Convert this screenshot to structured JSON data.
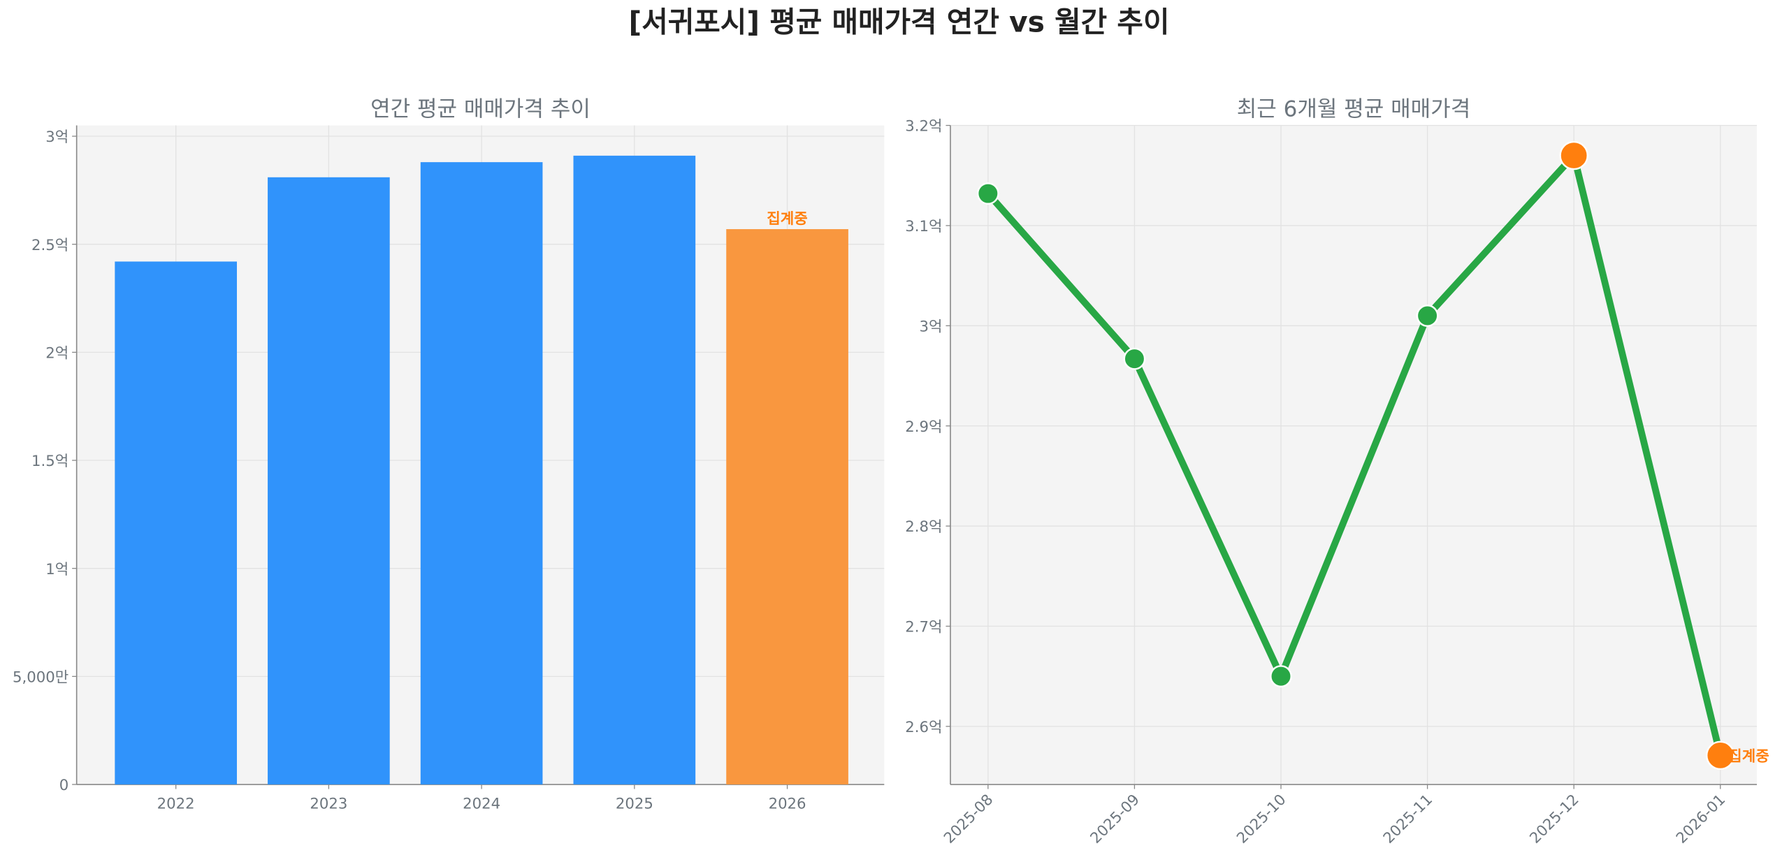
{
  "title": "[서귀포시] 평균 매매가격 연간 vs 월간 추이",
  "colors": {
    "bar": "#3093fb",
    "bar_partial": "#f9973f",
    "line": "#28a745",
    "highlight": "#ff7f0e",
    "plot_bg": "#f4f4f4"
  },
  "chart_data": [
    {
      "type": "bar",
      "title": "연간 평균 매매가격 추이",
      "unit": "억",
      "categories": [
        "2022",
        "2023",
        "2024",
        "2025",
        "2026"
      ],
      "values": [
        2.42,
        2.81,
        2.88,
        2.91,
        2.57
      ],
      "partial": [
        false,
        false,
        false,
        false,
        true
      ],
      "annotation": {
        "category": "2026",
        "text": "집계중"
      },
      "ylim": [
        0,
        3.05
      ],
      "yticks": [
        0,
        0.5,
        1,
        1.5,
        2,
        2.5,
        3
      ],
      "ytick_labels": [
        "0",
        "5,000만",
        "1억",
        "1.5억",
        "2억",
        "2.5억",
        "3억"
      ],
      "grid": true
    },
    {
      "type": "line",
      "title": "최근 6개월 평균 매매가격",
      "unit": "억",
      "categories": [
        "2025-08",
        "2025-09",
        "2025-10",
        "2025-11",
        "2025-12",
        "2026-01"
      ],
      "values": [
        3.132,
        2.967,
        2.65,
        3.01,
        3.17,
        2.571
      ],
      "highlight": [
        false,
        false,
        false,
        false,
        true,
        true
      ],
      "annotation": {
        "category": "2026-01",
        "text": "집계중"
      },
      "ylim": [
        2.542,
        3.2
      ],
      "yticks": [
        2.6,
        2.7,
        2.8,
        2.9,
        3.0,
        3.1,
        3.2
      ],
      "ytick_labels": [
        "2.6억",
        "2.7억",
        "2.8억",
        "2.9억",
        "3억",
        "3.1억",
        "3.2억"
      ],
      "grid": true
    }
  ]
}
